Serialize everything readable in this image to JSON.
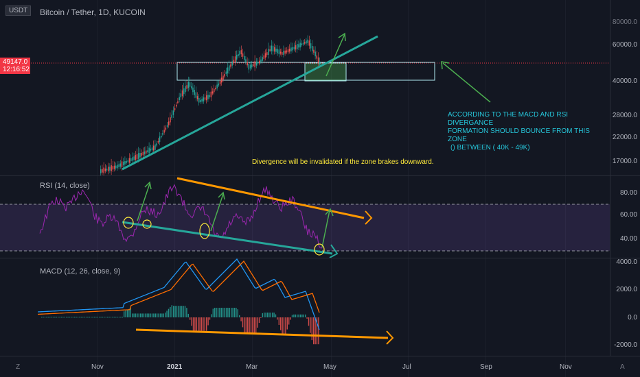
{
  "header": {
    "currency_badge": "USDT",
    "symbol_title": "Bitcoin / Tether, 1D, KUCOIN"
  },
  "price_axis": {
    "labels": [
      "60000.0",
      "40000.0",
      "28000.0",
      "22000.0",
      "17000.0"
    ],
    "current_price": "49147.0",
    "countdown": "12:16:52"
  },
  "rsi": {
    "title": "RSI (14, close)",
    "axis_labels": [
      "80.00",
      "60.00",
      "40.00"
    ]
  },
  "macd": {
    "title": "MACD (12, 26, close, 9)",
    "axis_labels": [
      "4000.0",
      "2000.0",
      "0.0",
      "-2000.0"
    ]
  },
  "time_axis": {
    "labels": [
      "Nov",
      "2021",
      "Mar",
      "May",
      "Jul",
      "Sep",
      "Nov"
    ],
    "left_button": "Z",
    "right_button": "A"
  },
  "annotations": {
    "zone_note": [
      "ACCORDING TO THE MACD AND RSI DIVERGANCE",
      "FORMATION SHOULD BOUNCE FROM THIS ZONE",
      "() BETWEEN ( 40K - 49K)"
    ],
    "invalidation_note": "Divergence will be invalidated if the zone brakes downward."
  },
  "colors": {
    "background": "#131722",
    "up_candle": "#26a69a",
    "down_candle": "#ef5350",
    "trend_teal": "#26a69a",
    "arrow_green": "#4caf50",
    "orange": "#ff9800",
    "note_cyan": "#26c6da",
    "note_yellow": "#ffeb3b",
    "rsi_purple": "#9c27b0",
    "macd_blue": "#2196f3",
    "signal_orange": "#ff6d00",
    "price_badge": "#f23645"
  }
}
